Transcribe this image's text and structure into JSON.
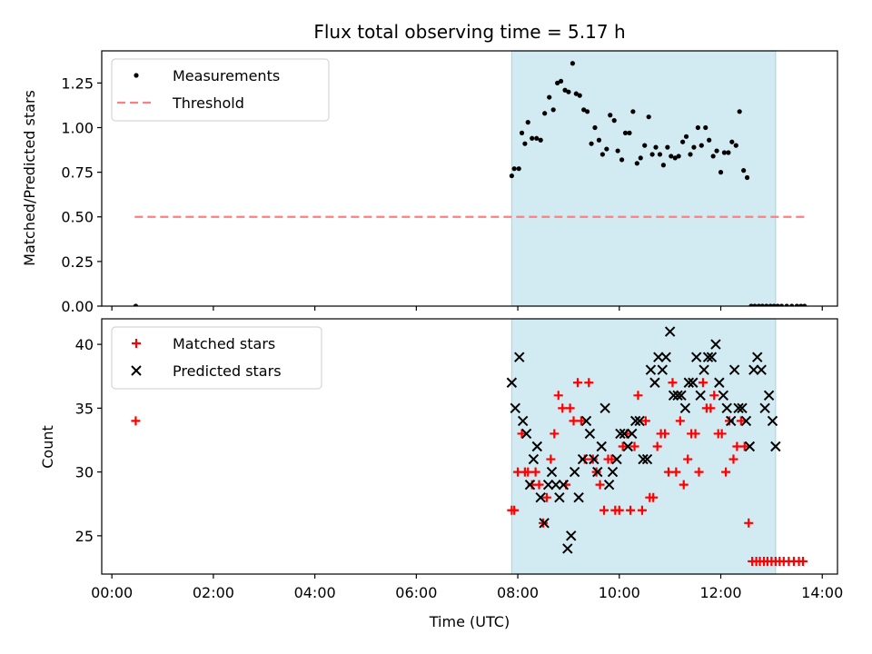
{
  "chart_data": [
    {
      "type": "scatter",
      "title": "Flux total observing time = 5.17 h",
      "ylabel": "Matched/Predicted stars",
      "xlabel": "",
      "xlim": [
        -0.2,
        14.3
      ],
      "ylim": [
        0,
        1.43
      ],
      "yticks": [
        0,
        0.25,
        0.5,
        0.75,
        1.0,
        1.25
      ],
      "ytick_labels": [
        "0.00",
        "0.25",
        "0.50",
        "0.75",
        "1.00",
        "1.25"
      ],
      "xticks": [
        0,
        2,
        4,
        6,
        8,
        10,
        12,
        14
      ],
      "shaded_span": [
        7.88,
        13.08
      ],
      "shaded_color": "#add8e6",
      "legend": {
        "placement": "top-left",
        "entries": [
          "Measurements",
          "Threshold"
        ]
      },
      "series": [
        {
          "name": "Measurements",
          "style": "dot",
          "color": "#000000",
          "x": [
            0.47,
            7.88,
            7.93,
            8.02,
            8.08,
            8.14,
            8.2,
            8.28,
            8.37,
            8.45,
            8.53,
            8.62,
            8.7,
            8.78,
            8.85,
            8.93,
            9.0,
            9.08,
            9.15,
            9.22,
            9.3,
            9.37,
            9.45,
            9.52,
            9.6,
            9.67,
            9.75,
            9.82,
            9.9,
            9.97,
            10.05,
            10.12,
            10.2,
            10.27,
            10.35,
            10.42,
            10.5,
            10.58,
            10.65,
            10.72,
            10.8,
            10.87,
            10.95,
            11.02,
            11.1,
            11.17,
            11.25,
            11.32,
            11.4,
            11.47,
            11.55,
            11.62,
            11.7,
            11.77,
            11.85,
            11.92,
            12.0,
            12.07,
            12.15,
            12.22,
            12.3,
            12.37,
            12.45,
            12.52,
            12.6,
            12.67,
            12.75,
            12.82,
            12.9,
            12.98,
            13.05,
            13.12,
            13.2,
            13.3,
            13.4,
            13.5,
            13.58,
            13.65
          ],
          "y": [
            0.0,
            0.73,
            0.77,
            0.77,
            0.97,
            0.91,
            1.03,
            0.94,
            0.94,
            0.93,
            1.08,
            1.17,
            1.1,
            1.25,
            1.26,
            1.21,
            1.2,
            1.36,
            1.19,
            1.18,
            1.1,
            1.09,
            0.91,
            1.0,
            0.93,
            0.85,
            0.88,
            1.07,
            1.04,
            0.87,
            0.82,
            0.97,
            0.97,
            1.09,
            0.8,
            0.83,
            0.9,
            1.06,
            0.85,
            0.89,
            0.85,
            0.79,
            0.89,
            0.84,
            0.83,
            0.84,
            0.92,
            0.95,
            0.85,
            0.89,
            1.0,
            0.9,
            1.0,
            0.93,
            0.84,
            0.87,
            0.75,
            0.86,
            0.86,
            0.92,
            0.9,
            1.09,
            0.76,
            0.72,
            0.0,
            0.0,
            0.0,
            0.0,
            0.0,
            0.0,
            0.0,
            0.0,
            0.0,
            0.0,
            0.0,
            0.0,
            0.0,
            0.0
          ]
        },
        {
          "name": "Threshold",
          "style": "dashed-line",
          "color": "#ff7f7f",
          "x": [
            0.45,
            13.65
          ],
          "y": [
            0.5,
            0.5
          ]
        }
      ]
    },
    {
      "type": "scatter",
      "title": "",
      "ylabel": "Count",
      "xlabel": "Time (UTC)",
      "xlim": [
        -0.2,
        14.3
      ],
      "ylim": [
        22,
        42
      ],
      "yticks": [
        25,
        30,
        35,
        40
      ],
      "ytick_labels": [
        "25",
        "30",
        "35",
        "40"
      ],
      "xticks": [
        0,
        2,
        4,
        6,
        8,
        10,
        12,
        14
      ],
      "xtick_labels": [
        "00:00",
        "02:00",
        "04:00",
        "06:00",
        "08:00",
        "10:00",
        "12:00",
        "14:00"
      ],
      "shaded_span": [
        7.88,
        13.08
      ],
      "shaded_color": "#add8e6",
      "legend": {
        "placement": "top-left",
        "entries": [
          "Matched stars",
          "Predicted stars"
        ]
      },
      "series": [
        {
          "name": "Matched stars",
          "style": "plus",
          "color": "#ff0000",
          "x": [
            0.47,
            7.88,
            7.93,
            8.0,
            8.08,
            8.14,
            8.2,
            8.28,
            8.35,
            8.42,
            8.5,
            8.57,
            8.65,
            8.72,
            8.8,
            8.88,
            8.95,
            9.03,
            9.1,
            9.18,
            9.25,
            9.32,
            9.4,
            9.48,
            9.55,
            9.62,
            9.7,
            9.78,
            9.85,
            9.92,
            10.0,
            10.07,
            10.15,
            10.22,
            10.3,
            10.37,
            10.45,
            10.52,
            10.6,
            10.67,
            10.75,
            10.82,
            10.9,
            10.97,
            11.05,
            11.12,
            11.2,
            11.27,
            11.35,
            11.42,
            11.5,
            11.57,
            11.65,
            11.72,
            11.8,
            11.87,
            11.95,
            12.02,
            12.1,
            12.17,
            12.25,
            12.32,
            12.4,
            12.47,
            12.55,
            12.62,
            12.7,
            12.77,
            12.85,
            12.92,
            13.0,
            13.08,
            13.16,
            13.24,
            13.34,
            13.44,
            13.54,
            13.62
          ],
          "y": [
            34,
            27,
            27,
            30,
            33,
            30,
            30,
            29,
            30,
            29,
            26,
            28,
            31,
            33,
            36,
            35,
            29,
            35,
            34,
            37,
            34,
            31,
            37,
            31,
            30,
            29,
            27,
            31,
            31,
            27,
            27,
            32,
            33,
            27,
            32,
            36,
            27,
            34,
            28,
            28,
            32,
            33,
            33,
            30,
            37,
            30,
            34,
            29,
            31,
            33,
            33,
            30,
            37,
            35,
            35,
            36,
            33,
            33,
            30,
            34,
            31,
            32,
            34,
            32,
            26,
            23,
            23,
            23,
            23,
            23,
            23,
            23,
            23,
            23,
            23,
            23,
            23,
            23
          ],
          "note": ""
        },
        {
          "name": "Predicted stars",
          "style": "x",
          "color": "#000000",
          "x": [
            7.88,
            7.95,
            8.03,
            8.1,
            8.17,
            8.24,
            8.31,
            8.38,
            8.45,
            8.52,
            8.6,
            8.67,
            8.75,
            8.82,
            8.9,
            8.98,
            9.05,
            9.12,
            9.2,
            9.28,
            9.35,
            9.42,
            9.5,
            9.57,
            9.65,
            9.72,
            9.8,
            9.87,
            9.95,
            10.02,
            10.1,
            10.17,
            10.25,
            10.32,
            10.4,
            10.47,
            10.55,
            10.62,
            10.7,
            10.77,
            10.85,
            10.92,
            11.0,
            11.07,
            11.15,
            11.22,
            11.3,
            11.37,
            11.45,
            11.52,
            11.6,
            11.67,
            11.75,
            11.82,
            11.9,
            11.97,
            12.05,
            12.12,
            12.2,
            12.27,
            12.35,
            12.42,
            12.5,
            12.57,
            12.65,
            12.72,
            12.8,
            12.87,
            12.95,
            13.02,
            13.08
          ],
          "y": [
            37,
            35,
            39,
            34,
            33,
            29,
            31,
            32,
            28,
            26,
            29,
            30,
            29,
            28,
            29,
            24,
            25,
            30,
            28,
            31,
            34,
            33,
            31,
            30,
            32,
            35,
            29,
            30,
            31,
            33,
            33,
            32,
            33,
            34,
            34,
            31,
            31,
            38,
            37,
            39,
            38,
            39,
            41,
            36,
            36,
            36,
            35,
            37,
            37,
            39,
            36,
            38,
            39,
            39,
            40,
            37,
            36,
            35,
            34,
            38,
            35,
            35,
            34,
            32,
            38,
            39,
            38,
            35,
            36,
            34,
            32
          ]
        }
      ]
    }
  ]
}
